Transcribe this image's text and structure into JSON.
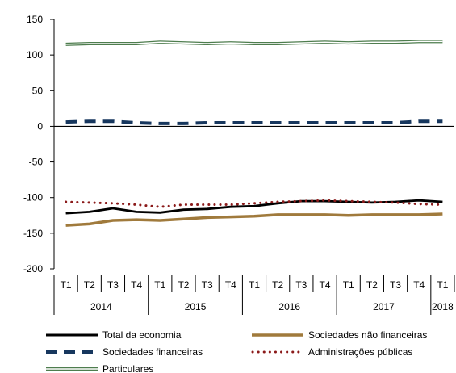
{
  "chart_data": {
    "type": "line",
    "title": "",
    "xlabel": "",
    "ylabel": "",
    "ylim": [
      -200,
      150
    ],
    "yticks": [
      150,
      100,
      50,
      0,
      -50,
      -100,
      -150,
      -200
    ],
    "quarters": [
      "T1",
      "T2",
      "T3",
      "T4",
      "T1",
      "T2",
      "T3",
      "T4",
      "T1",
      "T2",
      "T3",
      "T4",
      "T1",
      "T2",
      "T3",
      "T4",
      "T1"
    ],
    "years": [
      "2014",
      "2015",
      "2016",
      "2017",
      "2018"
    ],
    "grid": false,
    "legend_position": "bottom",
    "series": [
      {
        "name": "Total da economia",
        "color": "#000000",
        "style": "solid",
        "values": [
          -122,
          -120,
          -115,
          -120,
          -121,
          -117,
          -116,
          -113,
          -112,
          -108,
          -105,
          -105,
          -106,
          -107,
          -106,
          -104,
          -106
        ]
      },
      {
        "name": "Sociedades não financeiras",
        "color": "#a07a3c",
        "style": "solid",
        "values": [
          -139,
          -137,
          -132,
          -131,
          -132,
          -130,
          -128,
          -127,
          -126,
          -124,
          -124,
          -124,
          -125,
          -124,
          -124,
          -124,
          -123
        ]
      },
      {
        "name": "Sociedades financeiras",
        "color": "#17375e",
        "style": "dashed",
        "values": [
          6,
          7,
          7,
          5,
          4,
          4,
          5,
          5,
          5,
          5,
          5,
          5,
          5,
          5,
          5,
          7,
          7
        ]
      },
      {
        "name": "Administrações públicas",
        "color": "#8b1a1a",
        "style": "dotted",
        "values": [
          -106,
          -107,
          -108,
          -110,
          -113,
          -110,
          -110,
          -110,
          -108,
          -106,
          -105,
          -104,
          -105,
          -106,
          -107,
          -109,
          -110
        ]
      },
      {
        "name": "Particulares",
        "color": "#4e7d4e",
        "style": "double",
        "values": [
          115,
          116,
          116,
          116,
          118,
          117,
          116,
          117,
          116,
          116,
          117,
          118,
          117,
          118,
          118,
          119,
          119
        ]
      }
    ]
  }
}
